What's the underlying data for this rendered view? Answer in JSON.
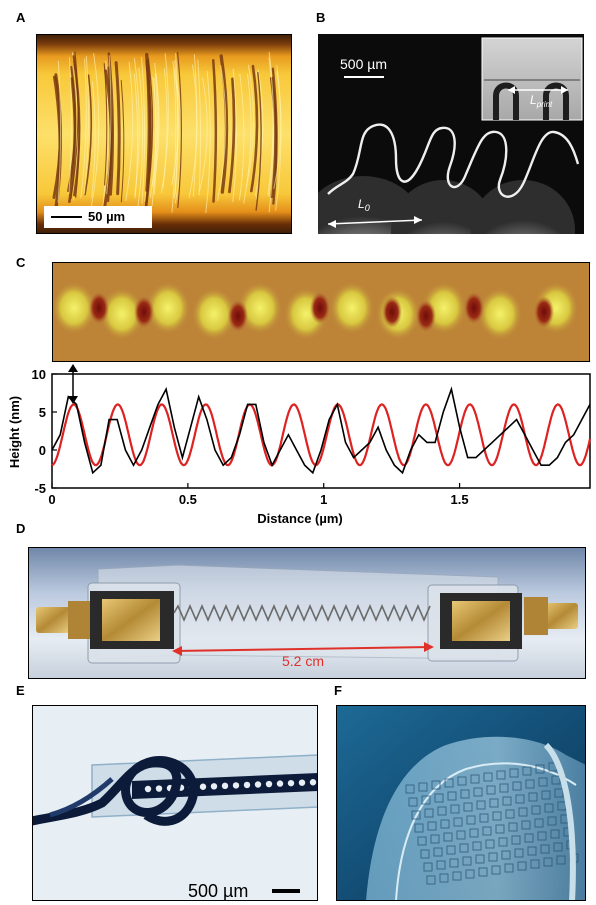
{
  "panels": {
    "a": {
      "label": "A",
      "scale_bar": "50 µm"
    },
    "b": {
      "label": "B",
      "scale_bar": "500 µm",
      "l0": "L",
      "l0_sub": "0",
      "lprint": "L",
      "lprint_sub": "print"
    },
    "c": {
      "label": "C"
    },
    "d": {
      "label": "D",
      "length": "5.2 cm"
    },
    "e": {
      "label": "E",
      "scale_bar": "500 µm"
    },
    "f": {
      "label": "F"
    }
  },
  "chart_data": {
    "type": "line",
    "xlabel": "Distance (µm)",
    "ylabel": "Height (nm)",
    "xlim": [
      0,
      1.98
    ],
    "ylim": [
      -5,
      10
    ],
    "xticks": [
      0,
      0.5,
      1,
      1.5
    ],
    "xtick_labels": [
      "0",
      "0.5",
      "1",
      "1.5"
    ],
    "yticks": [
      -5,
      0,
      5,
      10
    ],
    "ytick_labels": [
      "-5",
      "0",
      "5",
      "10"
    ],
    "series": [
      {
        "color": "#000000",
        "x": [
          0,
          0.03,
          0.06,
          0.09,
          0.12,
          0.15,
          0.18,
          0.21,
          0.24,
          0.27,
          0.3,
          0.33,
          0.36,
          0.39,
          0.42,
          0.45,
          0.48,
          0.51,
          0.54,
          0.57,
          0.6,
          0.63,
          0.66,
          0.69,
          0.72,
          0.75,
          0.78,
          0.81,
          0.84,
          0.87,
          0.9,
          0.93,
          0.96,
          0.99,
          1.02,
          1.05,
          1.08,
          1.11,
          1.14,
          1.17,
          1.2,
          1.23,
          1.26,
          1.29,
          1.32,
          1.35,
          1.38,
          1.41,
          1.44,
          1.47,
          1.5,
          1.53,
          1.56,
          1.59,
          1.62,
          1.65,
          1.68,
          1.71,
          1.74,
          1.77,
          1.8,
          1.83,
          1.86,
          1.89,
          1.92,
          1.95,
          1.98
        ],
        "values": [
          0,
          2,
          7,
          6,
          1,
          -3,
          -2,
          4,
          4,
          0,
          -2,
          0,
          3,
          6,
          8,
          3,
          -1,
          3,
          7,
          4,
          0,
          -2,
          -1,
          2,
          6,
          6,
          1,
          -2,
          0,
          2,
          0,
          -2,
          -3,
          0,
          4,
          6,
          1,
          -1,
          0,
          1,
          3,
          0,
          -2,
          -3,
          0,
          2,
          1,
          1,
          5,
          8,
          3,
          -1,
          -1,
          0,
          1,
          2,
          3,
          4,
          2,
          0,
          -2,
          -2,
          -1,
          1,
          2,
          4,
          6
        ]
      },
      {
        "color": "#dd2222",
        "period": 0.162,
        "amplitude": 4,
        "offset": 2,
        "phase_x": 0.08
      }
    ]
  }
}
